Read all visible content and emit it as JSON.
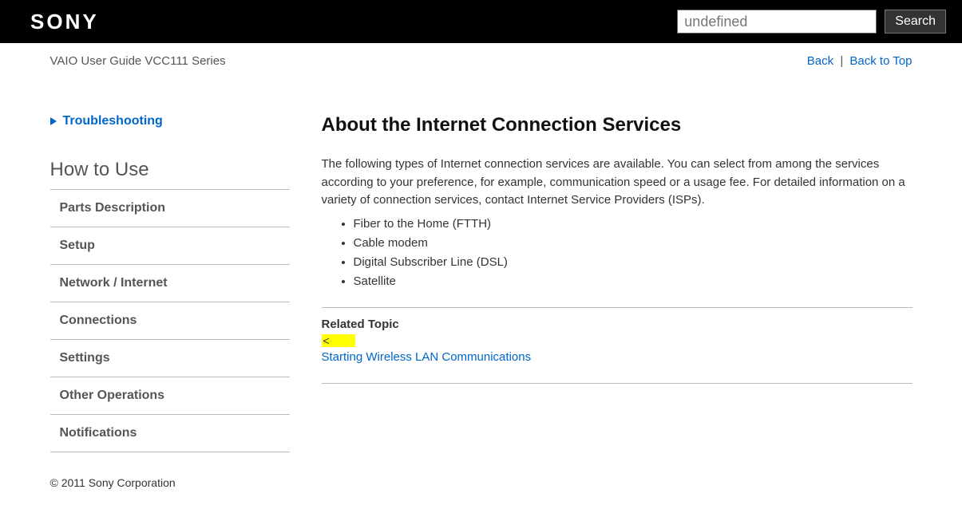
{
  "header": {
    "logo_text": "SONY",
    "search_placeholder": "undefined",
    "search_button_label": "Search"
  },
  "crumb": {
    "title": "VAIO User Guide VCC111 Series",
    "back_label": "Back",
    "back_to_top_label": "Back to Top",
    "separator": "|"
  },
  "sidebar": {
    "troubleshooting_label": "Troubleshooting",
    "section_heading": "How to Use",
    "items": [
      {
        "label": "Parts Description"
      },
      {
        "label": "Setup"
      },
      {
        "label": "Network / Internet"
      },
      {
        "label": "Connections"
      },
      {
        "label": "Settings"
      },
      {
        "label": "Other Operations"
      },
      {
        "label": "Notifications"
      }
    ]
  },
  "article": {
    "title": "About the Internet Connection Services",
    "intro": "The following types of Internet connection services are available. You can select from among the services according to your preference, for example, communication speed or a usage fee. For detailed information on a variety of connection services, contact Internet Service Providers (ISPs).",
    "list": [
      "Fiber to the Home (FTTH)",
      "Cable modem",
      "Digital Subscriber Line (DSL)",
      "Satellite"
    ],
    "related_heading": "Related Topic",
    "highlight_fragment": "<",
    "related_link": "Starting Wireless LAN Communications"
  },
  "footer": {
    "copyright": "© 2011 Sony Corporation"
  },
  "colors": {
    "link": "#0066cc",
    "highlight_bg": "#ffff00",
    "border": "#bbbbbb",
    "topbar_bg": "#000000",
    "body_text": "#333333"
  }
}
